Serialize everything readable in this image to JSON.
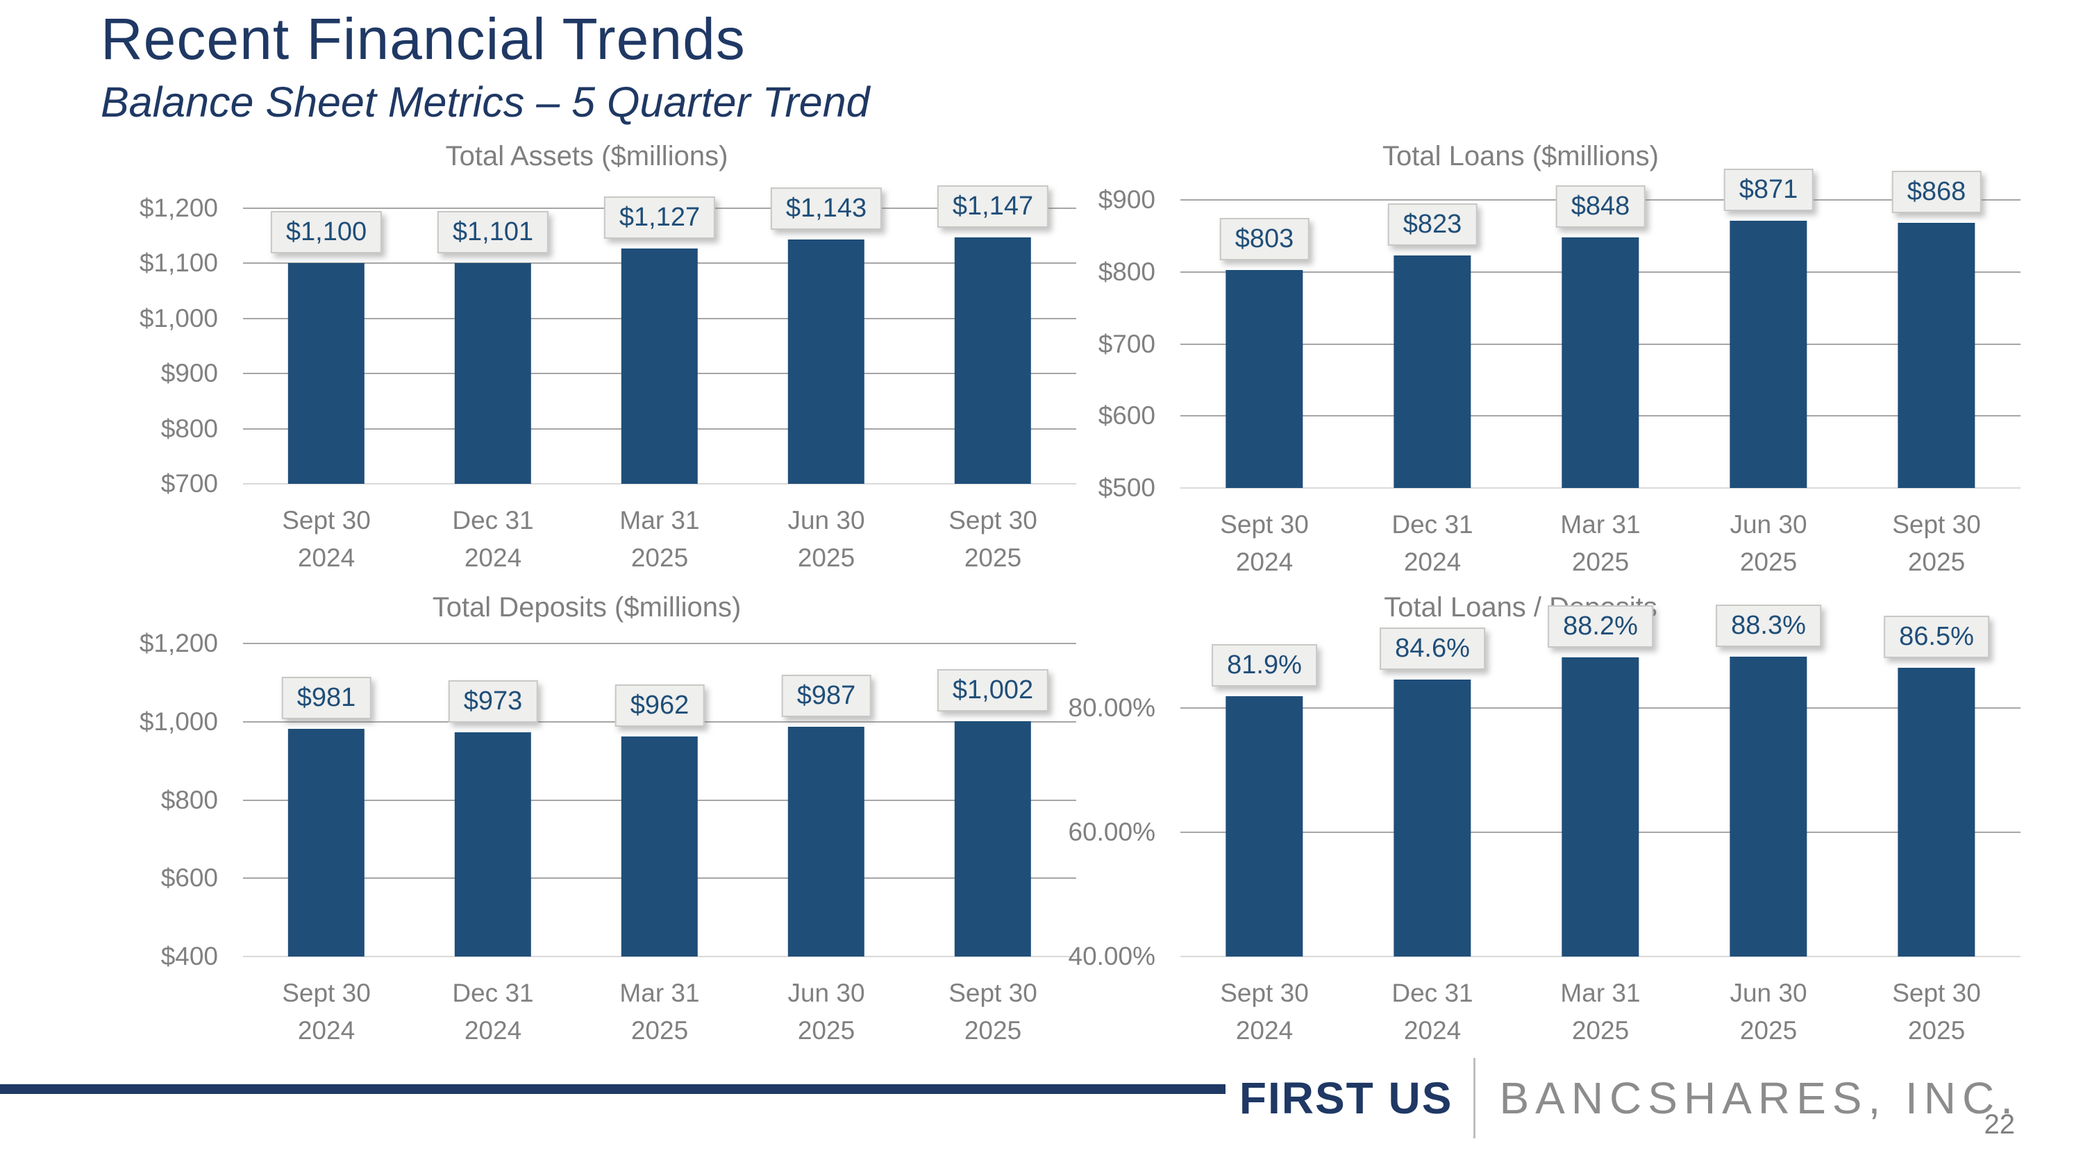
{
  "slide": {
    "title": "Recent Financial Trends",
    "subtitle": "Balance Sheet Metrics – 5 Quarter Trend",
    "page_number": "22",
    "footer": {
      "brand_left": "FIRST US",
      "brand_right": "BANCSHARES, INC."
    }
  },
  "colors": {
    "navy_title": "#1F3864",
    "bar_fill": "#1F4E79",
    "chart_title_gray": "#7F7F7F",
    "axis_label_gray": "#808080",
    "gridline_gray": "#A6A6A6",
    "baseline_gray": "#D9D9D9",
    "label_box_bg": "#EFEFED",
    "label_box_border": "#C8C8C6",
    "label_text_navy": "#1F4E79",
    "brand_gray": "#8C8C8C",
    "divider_gray": "#BFBFBF"
  },
  "chart_data": [
    {
      "type": "bar",
      "title": "Total Assets ($millions)",
      "categories": [
        "Sept 30\n2024",
        "Dec 31\n2024",
        "Mar 31\n2025",
        "Jun 30\n2025",
        "Sept 30\n2025"
      ],
      "values": [
        1100,
        1101,
        1127,
        1143,
        1147
      ],
      "data_labels": [
        "$1,100",
        "$1,101",
        "$1,127",
        "$1,143",
        "$1,147"
      ],
      "ylim": [
        700,
        1200
      ],
      "yticks": [
        {
          "value": 1200,
          "label": "$1,200"
        },
        {
          "value": 1100,
          "label": "$1,100"
        },
        {
          "value": 1000,
          "label": "$1,000"
        },
        {
          "value": 900,
          "label": "$900"
        },
        {
          "value": 800,
          "label": "$800"
        },
        {
          "value": 700,
          "label": "$700"
        }
      ],
      "xlabel": "",
      "ylabel": "",
      "grid": true,
      "legend": "none"
    },
    {
      "type": "bar",
      "title": "Total Loans ($millions)",
      "categories": [
        "Sept 30\n2024",
        "Dec 31\n2024",
        "Mar 31\n2025",
        "Jun 30\n2025",
        "Sept 30\n2025"
      ],
      "values": [
        803,
        823,
        848,
        871,
        868
      ],
      "data_labels": [
        "$803",
        "$823",
        "$848",
        "$871",
        "$868"
      ],
      "ylim": [
        500,
        900
      ],
      "yticks": [
        {
          "value": 900,
          "label": "$900"
        },
        {
          "value": 800,
          "label": "$800"
        },
        {
          "value": 700,
          "label": "$700"
        },
        {
          "value": 600,
          "label": "$600"
        },
        {
          "value": 500,
          "label": "$500"
        }
      ],
      "xlabel": "",
      "ylabel": "",
      "grid": true,
      "legend": "none"
    },
    {
      "type": "bar",
      "title": "Total Deposits ($millions)",
      "categories": [
        "Sept 30\n2024",
        "Dec 31\n2024",
        "Mar 31\n2025",
        "Jun 30\n2025",
        "Sept 30\n2025"
      ],
      "values": [
        981,
        973,
        962,
        987,
        1002
      ],
      "data_labels": [
        "$981",
        "$973",
        "$962",
        "$987",
        "$1,002"
      ],
      "ylim": [
        400,
        1200
      ],
      "yticks": [
        {
          "value": 1200,
          "label": "$1,200"
        },
        {
          "value": 1000,
          "label": "$1,000"
        },
        {
          "value": 800,
          "label": "$800"
        },
        {
          "value": 600,
          "label": "$600"
        },
        {
          "value": 400,
          "label": "$400"
        }
      ],
      "xlabel": "",
      "ylabel": "",
      "grid": true,
      "legend": "none"
    },
    {
      "type": "bar",
      "title": "Total Loans / Deposits",
      "categories": [
        "Sept 30\n2024",
        "Dec 31\n2024",
        "Mar 31\n2025",
        "Jun 30\n2025",
        "Sept 30\n2025"
      ],
      "values": [
        81.9,
        84.6,
        88.2,
        88.3,
        86.5
      ],
      "data_labels": [
        "81.9%",
        "84.6%",
        "88.2%",
        "88.3%",
        "86.5%"
      ],
      "ylim": [
        40,
        90
      ],
      "yticks": [
        {
          "value": 80,
          "label": "80.00%"
        },
        {
          "value": 60,
          "label": "60.00%"
        },
        {
          "value": 40,
          "label": "40.00%"
        }
      ],
      "xlabel": "",
      "ylabel": "",
      "grid": true,
      "legend": "none"
    }
  ]
}
